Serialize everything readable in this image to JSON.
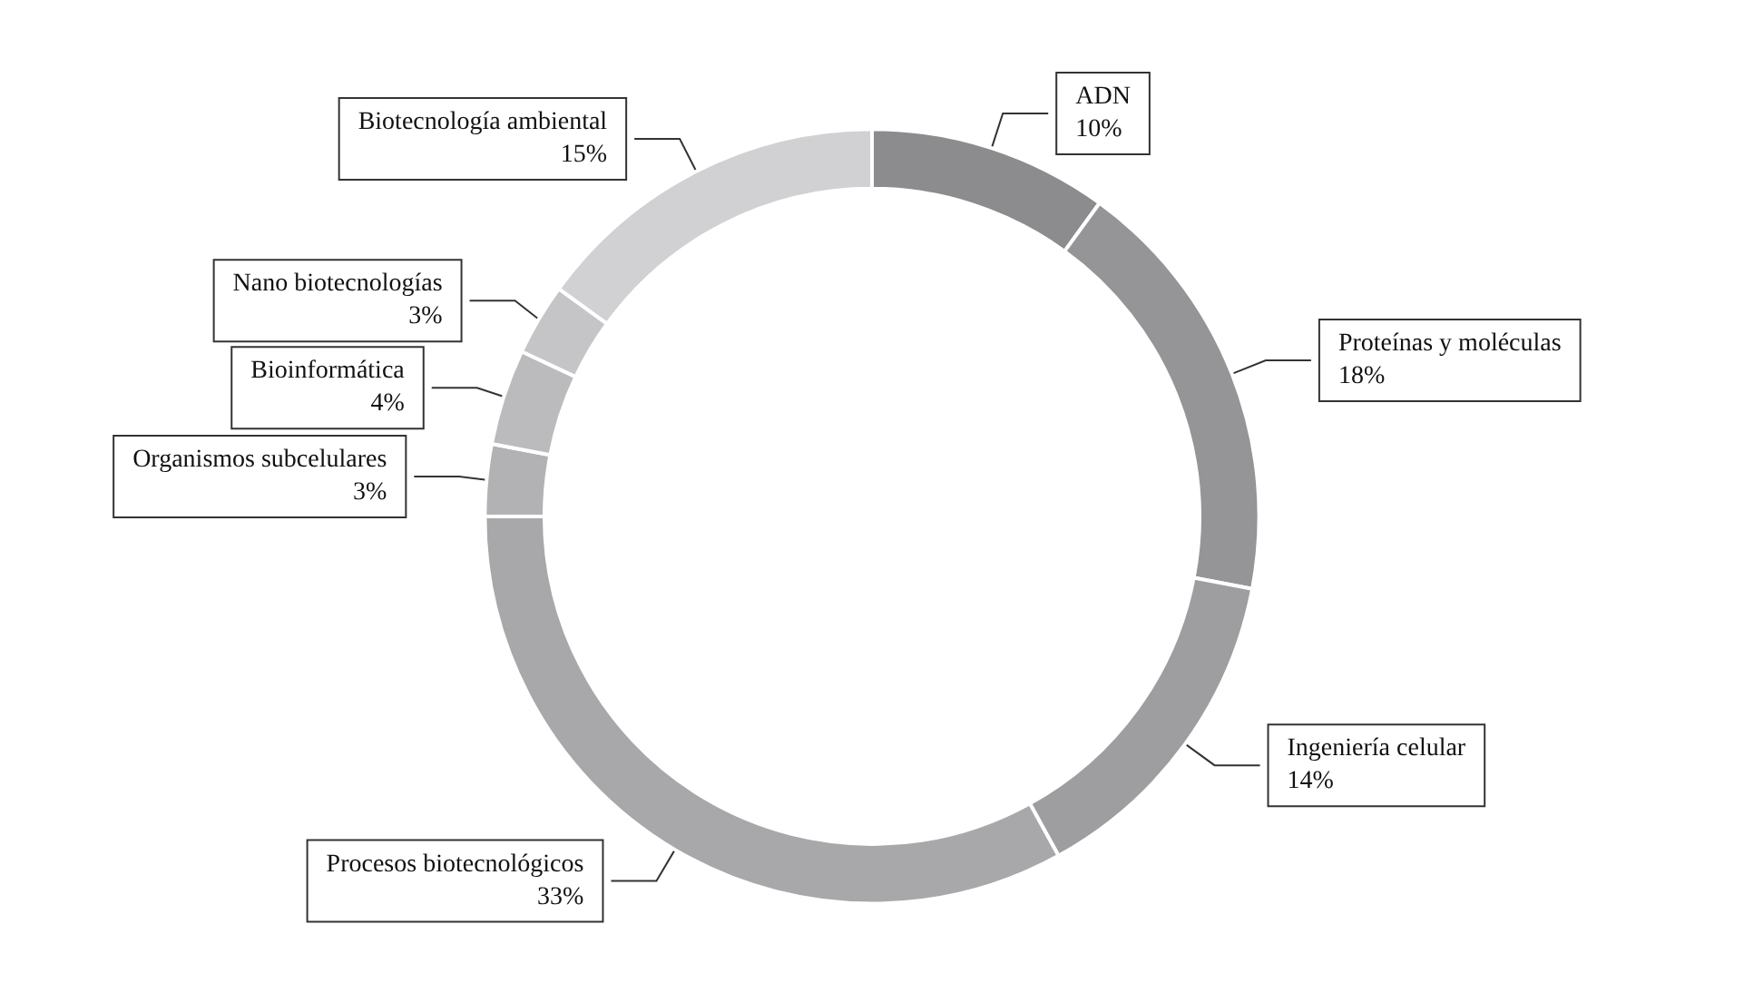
{
  "chart_data": {
    "type": "donut",
    "categories": [
      "ADN",
      "Proteínas y moléculas",
      "Ingeniería celular",
      "Procesos biotecnológicos",
      "Organismos subcelulares",
      "Bioinformática",
      "Nano biotecnologías",
      "Biotecnología ambiental"
    ],
    "values": [
      10,
      18,
      14,
      33,
      3,
      4,
      3,
      15
    ],
    "value_labels": [
      "10%",
      "18%",
      "14%",
      "33%",
      "3%",
      "4%",
      "3%",
      "15%"
    ],
    "colors": [
      "#8c8c8e",
      "#959598",
      "#9e9ea1",
      "#a8a8ab",
      "#b2b2b4",
      "#bbbbbd",
      "#c5c5c7",
      "#d1d1d3"
    ],
    "legend": false
  }
}
